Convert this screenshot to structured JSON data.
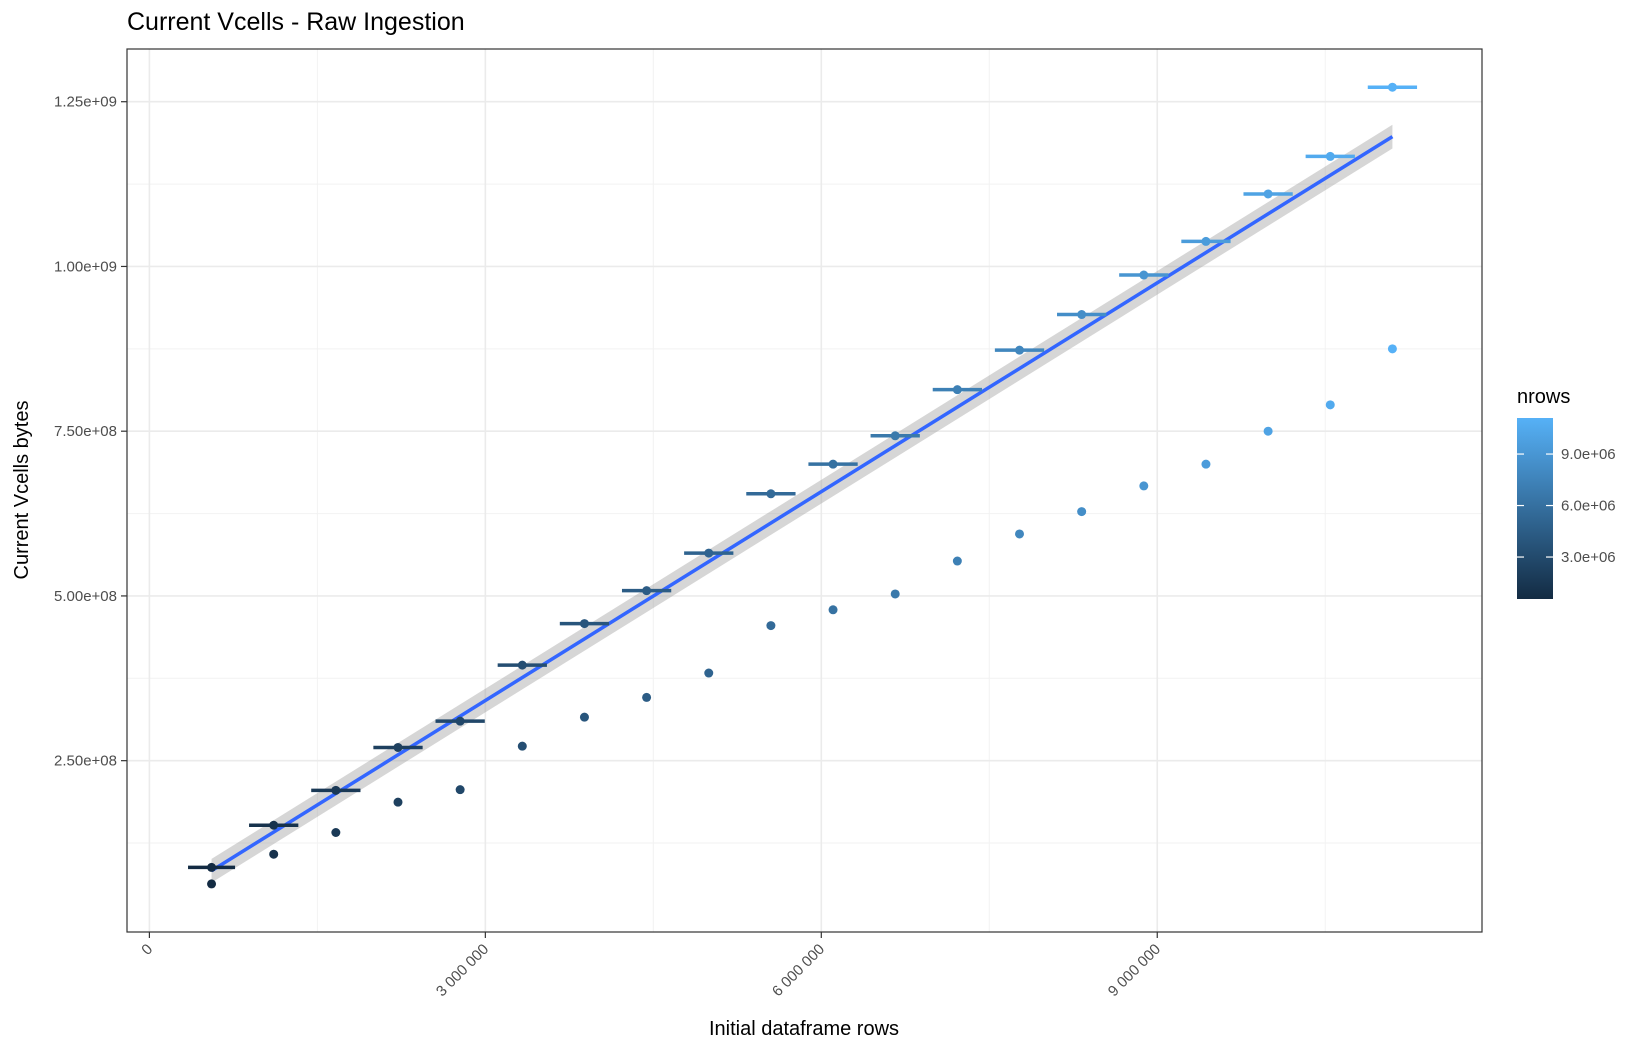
{
  "chart_data": {
    "type": "scatter",
    "title": "Current Vcells - Raw Ingestion",
    "xlabel": "Initial dataframe rows",
    "ylabel": "Current Vcells bytes",
    "xlim": [
      -200000,
      11900000
    ],
    "ylim": [
      -10000000,
      1330000000
    ],
    "x_ticks": [
      {
        "value": 0,
        "label": "0"
      },
      {
        "value": 3000000,
        "label": "3 000 000"
      },
      {
        "value": 6000000,
        "label": "6 000 000"
      },
      {
        "value": 9000000,
        "label": "9 000 000"
      }
    ],
    "y_ticks": [
      {
        "value": 250000000,
        "label": "2.50e+08"
      },
      {
        "value": 500000000,
        "label": "5.00e+08"
      },
      {
        "value": 750000000,
        "label": "7.50e+08"
      },
      {
        "value": 1000000000,
        "label": "1.00e+09"
      },
      {
        "value": 1250000000,
        "label": "1.25e+09"
      }
    ],
    "grid": true,
    "legend": {
      "title": "nrows",
      "placement": "right",
      "range": [
        555000,
        11100000
      ],
      "low_color": "#132B43",
      "high_color": "#56B1F7",
      "ticks": [
        {
          "value": 3000000,
          "label": "3.0e+06"
        },
        {
          "value": 6000000,
          "label": "6.0e+06"
        },
        {
          "value": 9000000,
          "label": "9.0e+06"
        }
      ]
    },
    "series": [
      {
        "kind": "points_with_x_errorbars",
        "x": [
          555000,
          1110000,
          1665000,
          2220000,
          2775000,
          3330000,
          3885000,
          4440000,
          4995000,
          5550000,
          6105000,
          6660000,
          7215000,
          7770000,
          8325000,
          8880000,
          9435000,
          9990000,
          10545000,
          11100000
        ],
        "y": [
          88000000,
          152000000,
          205000000,
          270000000,
          310000000,
          395000000,
          458000000,
          508000000,
          565000000,
          655000000,
          700000000,
          743000000,
          813000000,
          873000000,
          927000000,
          987000000,
          1038000000,
          1110000000,
          1167000000,
          1272000000
        ],
        "x_err": [
          210000,
          220000,
          220000,
          220000,
          220000,
          220000,
          220000,
          220000,
          220000,
          220000,
          220000,
          220000,
          220000,
          220000,
          220000,
          220000,
          220000,
          220000,
          220000,
          220000
        ]
      },
      {
        "kind": "points",
        "x": [
          555000,
          1110000,
          1665000,
          2220000,
          2775000,
          3330000,
          3885000,
          4440000,
          4995000,
          5550000,
          6105000,
          6660000,
          7215000,
          7770000,
          8325000,
          8880000,
          9435000,
          9990000,
          10545000,
          11100000
        ],
        "y": [
          63000000,
          108000000,
          141000000,
          187000000,
          206000000,
          272000000,
          316000000,
          346000000,
          383000000,
          455000000,
          479000000,
          503000000,
          553000000,
          594000000,
          628000000,
          667000000,
          700000000,
          750000000,
          790000000,
          875000000
        ]
      }
    ],
    "fit": {
      "kind": "linear",
      "color": "#3366FF",
      "band_color": "#999999",
      "x": [
        555000,
        11100000
      ],
      "y": [
        83000000,
        1197000000
      ],
      "band_halfwidth": [
        18000000,
        18000000
      ]
    }
  }
}
